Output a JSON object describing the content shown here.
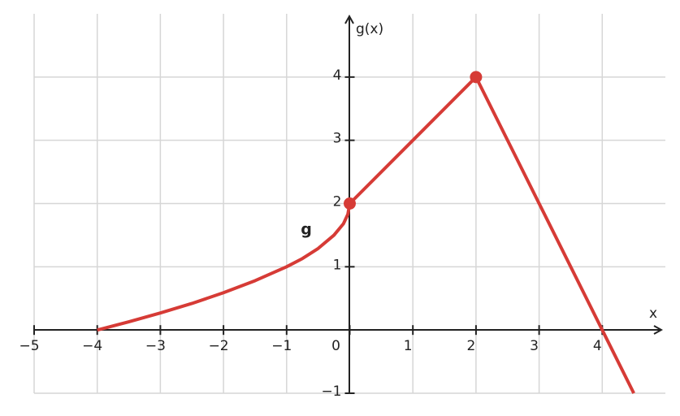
{
  "chart_data": {
    "type": "line",
    "x_label": "x",
    "y_label": "g(x)",
    "annotation": "g",
    "x": [
      -4,
      -3.5,
      -3,
      -2.5,
      -2,
      -1.5,
      -1,
      -0.75,
      -0.5,
      -0.25,
      -0.1,
      -0.03,
      0,
      2,
      4.5
    ],
    "series": [
      {
        "name": "g",
        "color": "#d63b36",
        "values": [
          0,
          0.13,
          0.27,
          0.42,
          0.59,
          0.78,
          1,
          1.13,
          1.29,
          1.5,
          1.68,
          1.83,
          2,
          4,
          -1
        ]
      }
    ],
    "points": {
      "x": [
        0,
        2
      ],
      "y": [
        2,
        4
      ]
    },
    "xlim": [
      -5,
      5
    ],
    "ylim": [
      -1,
      5
    ],
    "xticks": [
      {
        "value": -5,
        "label": "−5"
      },
      {
        "value": -4,
        "label": "−4"
      },
      {
        "value": -3,
        "label": "−3"
      },
      {
        "value": -2,
        "label": "−2"
      },
      {
        "value": -1,
        "label": "−1"
      },
      0,
      1,
      2,
      3,
      4
    ],
    "yticks": [
      {
        "value": -1,
        "label": "−1"
      },
      1,
      2,
      3,
      4
    ],
    "grid": true
  }
}
